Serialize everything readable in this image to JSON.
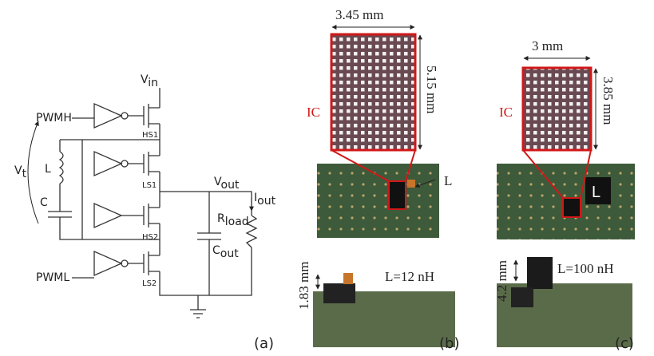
{
  "schematic": {
    "pwmh": "PWMH",
    "pwml": "PWML",
    "hs1": "HS1",
    "ls1": "LS1",
    "hs2": "HS2",
    "ls2": "LS2",
    "l": "L",
    "c": "C",
    "vin": {
      "main": "V",
      "sub": "in"
    },
    "vt": {
      "main": "V",
      "sub": "t"
    },
    "vout": {
      "main": "V",
      "sub": "out"
    },
    "iout": {
      "main": "I",
      "sub": "out"
    },
    "rload": {
      "main": "R",
      "sub": "load"
    },
    "cout": {
      "main": "C",
      "sub": "out"
    },
    "panel": "(a)"
  },
  "panel_b": {
    "width": "3.45 mm",
    "height": "5.15 mm",
    "ic": "IC",
    "inductor": "L",
    "inductance": "L=12 nH",
    "thickness": "1.83 mm",
    "panel": "(b)"
  },
  "panel_c": {
    "width": "3 mm",
    "height": "3.85 mm",
    "ic": "IC",
    "inductor": "L",
    "inductance": "L=100 nH",
    "thickness": "4.2 mm",
    "panel": "(c)"
  }
}
